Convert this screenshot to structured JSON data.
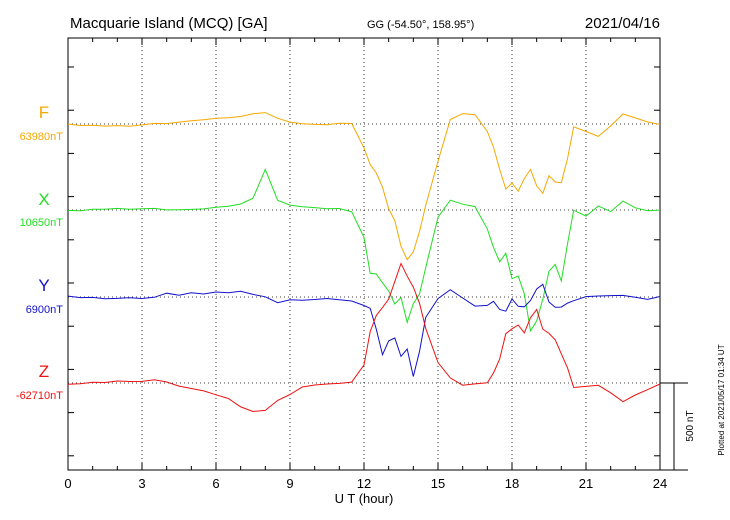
{
  "header": {
    "station": "Macquarie Island (MCQ)  [GA]",
    "coords": "GG (-54.50°, 158.95°)",
    "date": "2021/04/16"
  },
  "footer": {
    "plotted": "Plotted at 2021/05/17 01:34 UT",
    "scale_label": "500 nT"
  },
  "chart_data": {
    "type": "line",
    "xlabel": "U T (hour)",
    "xlim": [
      0,
      24
    ],
    "x_ticks": [
      "0",
      "3",
      "6",
      "9",
      "12",
      "15",
      "18",
      "21",
      "24"
    ],
    "scale_bar_nT": 500,
    "x": [
      0,
      0.5,
      1,
      1.5,
      2,
      2.5,
      3,
      3.5,
      4,
      4.5,
      5,
      5.5,
      6,
      6.5,
      7,
      7.5,
      8,
      8.5,
      9,
      9.5,
      10,
      10.5,
      11,
      11.5,
      12,
      12.25,
      12.5,
      12.75,
      13,
      13.25,
      13.5,
      13.75,
      14,
      14.25,
      14.5,
      15,
      15.5,
      16,
      16.5,
      17,
      17.25,
      17.5,
      17.75,
      18,
      18.25,
      18.5,
      18.75,
      19,
      19.25,
      19.5,
      19.75,
      20,
      20.25,
      20.5,
      21,
      21.5,
      22,
      22.5,
      23,
      23.5,
      24
    ],
    "series": [
      {
        "name": "F",
        "baseline_label": "63980nT",
        "color": "#f5a800",
        "values": [
          0,
          -5,
          0,
          -3,
          0,
          -5,
          0,
          5,
          0,
          5,
          10,
          15,
          25,
          30,
          40,
          60,
          70,
          40,
          20,
          10,
          5,
          0,
          5,
          0,
          -150,
          -250,
          -300,
          -380,
          -500,
          -560,
          -700,
          -770,
          -720,
          -600,
          -450,
          -200,
          30,
          60,
          50,
          -50,
          -150,
          -280,
          -390,
          -350,
          -390,
          -310,
          -250,
          -340,
          -380,
          -280,
          -320,
          -330,
          -200,
          -20,
          -50,
          -80,
          -20,
          50,
          30,
          10,
          0
        ]
      },
      {
        "name": "X",
        "baseline_label": "10650nT",
        "color": "#22dd22",
        "values": [
          0,
          -5,
          0,
          -3,
          0,
          -5,
          0,
          5,
          0,
          5,
          10,
          15,
          25,
          30,
          40,
          70,
          230,
          50,
          20,
          10,
          5,
          0,
          5,
          -10,
          -150,
          -350,
          -350,
          -400,
          -450,
          -530,
          -500,
          -650,
          -550,
          -500,
          -350,
          -50,
          50,
          30,
          20,
          -100,
          -200,
          -280,
          -230,
          -380,
          -370,
          -480,
          -700,
          -650,
          -530,
          -370,
          -330,
          -420,
          -200,
          0,
          -30,
          30,
          0,
          60,
          20,
          0,
          0
        ]
      },
      {
        "name": "Y",
        "baseline_label": "6900nT",
        "color": "#1111cc",
        "values": [
          0,
          -5,
          0,
          -5,
          0,
          5,
          0,
          5,
          25,
          10,
          20,
          10,
          20,
          15,
          25,
          10,
          0,
          -30,
          -10,
          -10,
          -5,
          0,
          -10,
          -20,
          -50,
          -70,
          -200,
          -350,
          -270,
          -250,
          -350,
          -300,
          -450,
          -300,
          -100,
          0,
          50,
          0,
          -50,
          -50,
          -30,
          -80,
          -100,
          -20,
          -60,
          -60,
          -20,
          50,
          80,
          -20,
          -50,
          -50,
          -30,
          -20,
          0,
          0,
          0,
          0,
          -10,
          -20,
          0
        ]
      },
      {
        "name": "Z",
        "baseline_label": "-62710nT",
        "color": "#ee1111",
        "values": [
          0,
          0,
          5,
          0,
          5,
          0,
          0,
          10,
          0,
          -20,
          -30,
          -40,
          -60,
          -80,
          -120,
          -150,
          -150,
          -100,
          -70,
          -30,
          -20,
          -15,
          -10,
          0,
          100,
          300,
          400,
          450,
          500,
          600,
          700,
          620,
          550,
          450,
          300,
          100,
          20,
          -20,
          -10,
          0,
          60,
          150,
          300,
          330,
          350,
          300,
          380,
          420,
          300,
          270,
          230,
          150,
          80,
          -30,
          -20,
          -10,
          -50,
          -90,
          -60,
          -30,
          0
        ]
      }
    ]
  }
}
